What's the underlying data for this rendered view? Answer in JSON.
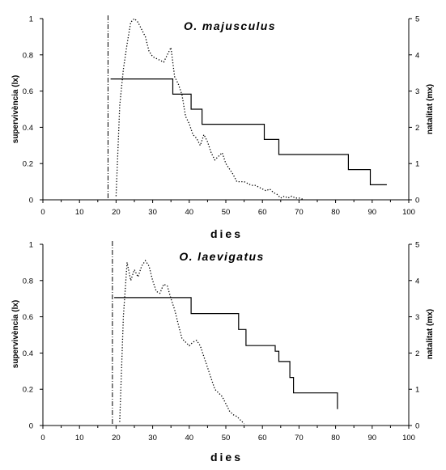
{
  "chart_data": [
    {
      "type": "line",
      "title": "O. majusculus",
      "xlabel": "dies",
      "ylabel": "supervivència (lx)",
      "y2label": "natalitat (mx)",
      "xlim": [
        0,
        100
      ],
      "ylim": [
        0,
        1
      ],
      "y2lim": [
        0,
        5
      ],
      "x_ticks": [
        "0",
        "10",
        "20",
        "30",
        "40",
        "50",
        "60",
        "70",
        "80",
        "90",
        "100"
      ],
      "y_ticks": [
        "0",
        "0.2",
        "0.4",
        "0.6",
        "0.8",
        "1"
      ],
      "y2_ticks": [
        "0",
        "1",
        "2",
        "3",
        "4",
        "5"
      ],
      "vline_x": 17.8,
      "grid": false,
      "series": [
        {
          "axis": "left",
          "style": "solid",
          "color": "#000000",
          "x": [
            18.5,
            34.5,
            35.5,
            39.5,
            40.5,
            42.5,
            43.5,
            59.5,
            60.5,
            63.5,
            64.5,
            82.5,
            83.5,
            88.5,
            89.5,
            94
          ],
          "y": [
            0.667,
            0.667,
            0.583,
            0.583,
            0.5,
            0.5,
            0.417,
            0.417,
            0.333,
            0.333,
            0.25,
            0.25,
            0.167,
            0.167,
            0.083,
            0.083
          ]
        },
        {
          "axis": "right",
          "style": "dotted",
          "color": "#000000",
          "x": [
            20,
            21,
            22,
            23,
            24,
            25,
            26,
            27,
            28,
            29,
            30,
            31,
            32,
            33,
            34,
            35,
            36,
            37,
            38,
            39,
            40,
            41,
            42,
            43,
            44,
            45,
            46,
            47,
            48,
            49,
            50,
            51,
            52,
            53,
            54,
            55,
            56,
            57,
            58,
            59,
            60,
            61,
            62,
            63,
            64,
            65,
            66,
            67,
            68,
            69,
            70,
            71
          ],
          "y": [
            0.1,
            2.6,
            3.6,
            4.3,
            4.9,
            5.0,
            4.9,
            4.7,
            4.5,
            4.1,
            3.95,
            3.9,
            3.85,
            3.8,
            4.0,
            4.2,
            3.4,
            3.2,
            2.9,
            2.3,
            2.1,
            1.8,
            1.7,
            1.5,
            1.8,
            1.6,
            1.3,
            1.1,
            1.2,
            1.3,
            1.0,
            0.85,
            0.7,
            0.5,
            0.5,
            0.5,
            0.45,
            0.4,
            0.4,
            0.35,
            0.3,
            0.25,
            0.3,
            0.2,
            0.15,
            0.05,
            0.1,
            0.05,
            0.1,
            0.05,
            0.05,
            0.02
          ]
        }
      ]
    },
    {
      "type": "line",
      "title": "O. laevigatus",
      "xlabel": "dies",
      "ylabel": "supervivència (lx)",
      "y2label": "natalitat (mx)",
      "xlim": [
        0,
        100
      ],
      "ylim": [
        0,
        1
      ],
      "y2lim": [
        0,
        5
      ],
      "x_ticks": [
        "0",
        "10",
        "20",
        "30",
        "40",
        "50",
        "60",
        "70",
        "80",
        "90",
        "100"
      ],
      "y_ticks": [
        "0",
        "0.2",
        "0.4",
        "0.6",
        "0.8",
        "1"
      ],
      "y2_ticks": [
        "0",
        "1",
        "2",
        "3",
        "4",
        "5"
      ],
      "vline_x": 19.0,
      "grid": false,
      "series": [
        {
          "axis": "left",
          "style": "solid",
          "color": "#000000",
          "x": [
            19.5,
            39.5,
            40.5,
            52.5,
            53.5,
            54.5,
            55.5,
            62.5,
            63.5,
            64.5,
            65.5,
            67.5,
            68.5,
            79.5,
            80.5
          ],
          "y": [
            0.706,
            0.706,
            0.618,
            0.618,
            0.53,
            0.53,
            0.441,
            0.441,
            0.41,
            0.353,
            0.353,
            0.265,
            0.18,
            0.18,
            0.09
          ]
        },
        {
          "axis": "right",
          "style": "dotted",
          "color": "#000000",
          "x": [
            21,
            22,
            23,
            24,
            25,
            26,
            27,
            28,
            29,
            30,
            31,
            32,
            33,
            34,
            35,
            36,
            37,
            38,
            39,
            40,
            41,
            42,
            43,
            44,
            45,
            46,
            47,
            48,
            49,
            50,
            51,
            52,
            53,
            54,
            55
          ],
          "y": [
            0.1,
            3.0,
            4.5,
            4.0,
            4.3,
            4.1,
            4.4,
            4.55,
            4.4,
            4.0,
            3.7,
            3.65,
            3.9,
            3.85,
            3.5,
            3.2,
            2.8,
            2.4,
            2.3,
            2.2,
            2.3,
            2.35,
            2.2,
            1.9,
            1.6,
            1.3,
            1.0,
            0.9,
            0.8,
            0.6,
            0.4,
            0.3,
            0.25,
            0.15,
            0.05
          ]
        }
      ]
    }
  ]
}
